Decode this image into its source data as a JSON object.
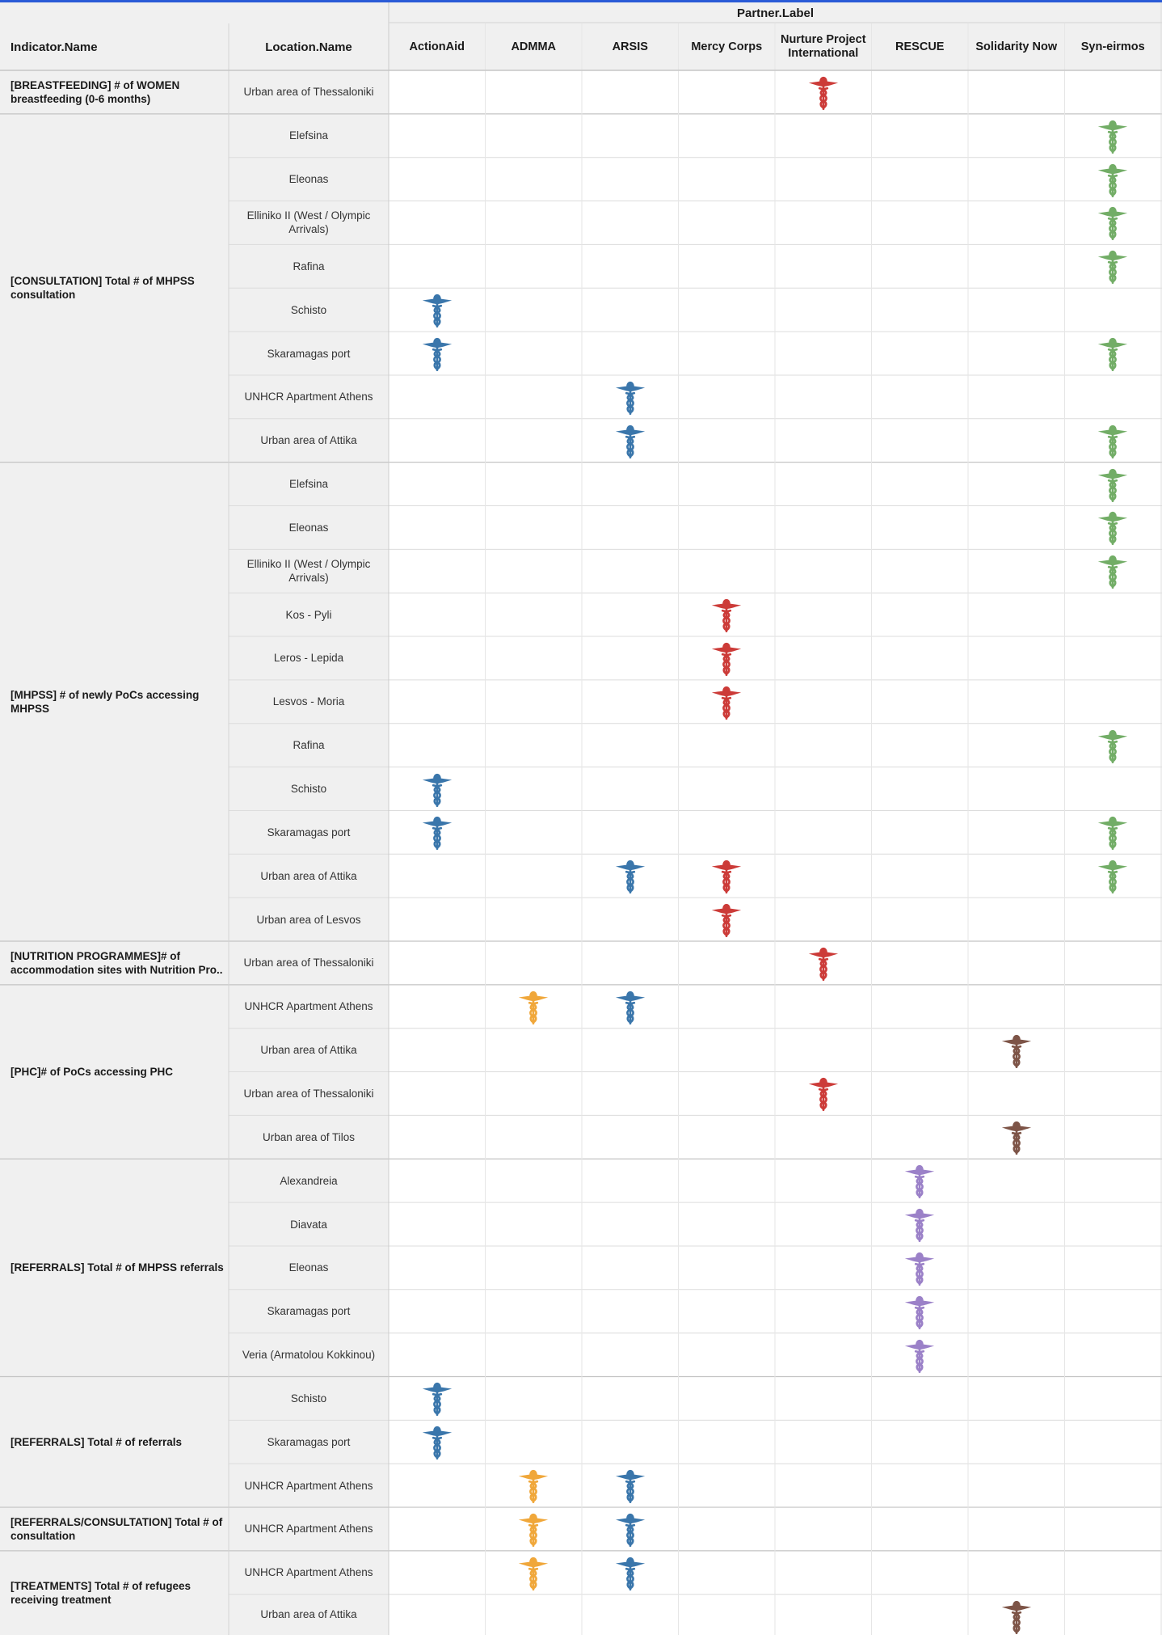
{
  "header": {
    "indicator_label": "Indicator.Name",
    "location_label": "Location.Name",
    "partner_label": "Partner.Label"
  },
  "partners": [
    {
      "name": "ActionAid",
      "color": "#3a76ab"
    },
    {
      "name": "ADMMA",
      "color": "#f0a73a"
    },
    {
      "name": "ARSIS",
      "color": "#3a76ab"
    },
    {
      "name": "Mercy Corps",
      "color": "#cc3b38"
    },
    {
      "name": "Nurture Project International",
      "color": "#cc3b38"
    },
    {
      "name": "RESCUE",
      "color": "#9b81c8"
    },
    {
      "name": "Solidarity Now",
      "color": "#7d5447"
    },
    {
      "name": "Syn-eirmos",
      "color": "#72ad66"
    }
  ],
  "icon": "caduceus-icon",
  "groups": [
    {
      "indicator": "[BREASTFEEDING]  # of WOMEN breastfeeding (0-6 months)",
      "rows": [
        {
          "location": "Urban area of Thessaloniki",
          "partners": [
            4
          ]
        }
      ]
    },
    {
      "indicator": "[CONSULTATION] Total # of MHPSS consultation",
      "rows": [
        {
          "location": "Elefsina",
          "partners": [
            7
          ]
        },
        {
          "location": "Eleonas",
          "partners": [
            7
          ]
        },
        {
          "location": "Elliniko II (West / Olympic Arrivals)",
          "partners": [
            7
          ]
        },
        {
          "location": "Rafina",
          "partners": [
            7
          ]
        },
        {
          "location": "Schisto",
          "partners": [
            0
          ]
        },
        {
          "location": "Skaramagas port",
          "partners": [
            0,
            7
          ]
        },
        {
          "location": "UNHCR Apartment Athens",
          "partners": [
            2
          ]
        },
        {
          "location": "Urban area of Attika",
          "partners": [
            2,
            7
          ]
        }
      ]
    },
    {
      "indicator": "[MHPSS] # of newly PoCs accessing MHPSS",
      "rows": [
        {
          "location": "Elefsina",
          "partners": [
            7
          ]
        },
        {
          "location": "Eleonas",
          "partners": [
            7
          ]
        },
        {
          "location": "Elliniko II (West / Olympic Arrivals)",
          "partners": [
            7
          ]
        },
        {
          "location": "Kos - Pyli",
          "partners": [
            3
          ]
        },
        {
          "location": "Leros - Lepida",
          "partners": [
            3
          ]
        },
        {
          "location": "Lesvos - Moria",
          "partners": [
            3
          ]
        },
        {
          "location": "Rafina",
          "partners": [
            7
          ]
        },
        {
          "location": "Schisto",
          "partners": [
            0
          ]
        },
        {
          "location": "Skaramagas port",
          "partners": [
            0,
            7
          ]
        },
        {
          "location": "Urban area of Attika",
          "partners": [
            2,
            3,
            7
          ]
        },
        {
          "location": "Urban area of Lesvos",
          "partners": [
            3
          ]
        }
      ]
    },
    {
      "indicator": "[NUTRITION PROGRAMMES]# of accommodation sites with Nutrition Pro..",
      "rows": [
        {
          "location": "Urban area of Thessaloniki",
          "partners": [
            4
          ]
        }
      ]
    },
    {
      "indicator": "[PHC]# of PoCs accessing PHC",
      "rows": [
        {
          "location": "UNHCR Apartment Athens",
          "partners": [
            1,
            2
          ]
        },
        {
          "location": "Urban area of Attika",
          "partners": [
            6
          ]
        },
        {
          "location": "Urban area of Thessaloniki",
          "partners": [
            4
          ]
        },
        {
          "location": "Urban area of Tilos",
          "partners": [
            6
          ]
        }
      ]
    },
    {
      "indicator": "[REFERRALS] Total # of MHPSS referrals",
      "rows": [
        {
          "location": "Alexandreia",
          "partners": [
            5
          ]
        },
        {
          "location": "Diavata",
          "partners": [
            5
          ]
        },
        {
          "location": "Eleonas",
          "partners": [
            5
          ]
        },
        {
          "location": "Skaramagas port",
          "partners": [
            5
          ]
        },
        {
          "location": "Veria (Armatolou Kokkinou)",
          "partners": [
            5
          ]
        }
      ]
    },
    {
      "indicator": "[REFERRALS] Total # of referrals",
      "rows": [
        {
          "location": "Schisto",
          "partners": [
            0
          ]
        },
        {
          "location": "Skaramagas port",
          "partners": [
            0
          ]
        },
        {
          "location": "UNHCR Apartment Athens",
          "partners": [
            1,
            2
          ]
        }
      ]
    },
    {
      "indicator": "[REFERRALS/CONSULTATION] Total # of consultation",
      "rows": [
        {
          "location": "UNHCR Apartment Athens",
          "partners": [
            1,
            2
          ]
        }
      ]
    },
    {
      "indicator": "[TREATMENTS] Total # of refugees receiving treatment",
      "rows": [
        {
          "location": "UNHCR Apartment Athens",
          "partners": [
            1,
            2
          ]
        },
        {
          "location": "Urban area of Attika",
          "partners": [
            6
          ]
        }
      ]
    }
  ]
}
